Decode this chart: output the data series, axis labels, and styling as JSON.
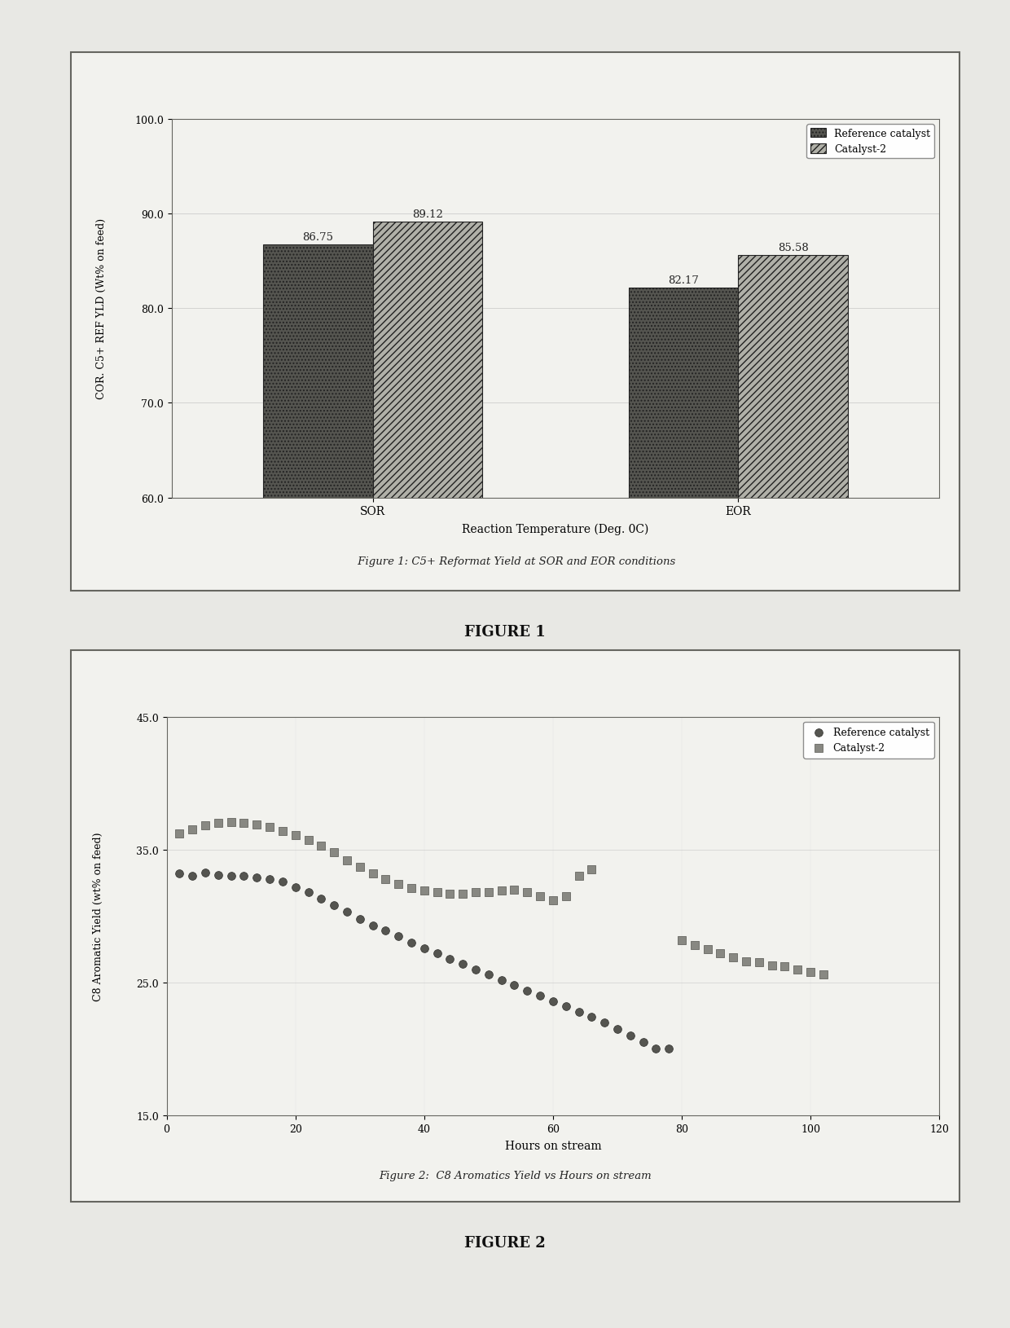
{
  "fig1": {
    "title": " Figure 1: C5+ Reformat Yield at SOR and EOR conditions",
    "xlabel": "Reaction Temperature (Deg. 0C)",
    "ylabel": "COR. C5+ REF YLD (Wt% on feed)",
    "ylim": [
      60.0,
      100.0
    ],
    "yticks": [
      60.0,
      70.0,
      80.0,
      90.0,
      100.0
    ],
    "categories": [
      "SOR",
      "EOR"
    ],
    "ref_values": [
      86.75,
      82.17
    ],
    "cat2_values": [
      89.12,
      85.58
    ],
    "ref_label": "Reference catalyst",
    "cat2_label": "Catalyst-2",
    "ref_color": "#555550",
    "cat2_hatch_color": "#b0b0a8",
    "bar_width": 0.3
  },
  "fig2": {
    "title": "Figure 2:  C8 Aromatics Yield vs Hours on stream",
    "xlabel": "Hours on stream",
    "ylabel": "C8 Aromatic Yield (wt% on feed)",
    "ylim": [
      15.0,
      45.0
    ],
    "yticks": [
      15.0,
      25.0,
      35.0,
      45.0
    ],
    "xlim": [
      0,
      120
    ],
    "xticks": [
      0,
      20,
      40,
      60,
      80,
      100,
      120
    ],
    "ref_label": "Reference catalyst",
    "cat2_label": "Catalyst-2",
    "ref_x": [
      2,
      4,
      6,
      8,
      10,
      12,
      14,
      16,
      18,
      20,
      22,
      24,
      26,
      28,
      30,
      32,
      34,
      36,
      38,
      40,
      42,
      44,
      46,
      48,
      50,
      52,
      54,
      56,
      58,
      60,
      62,
      64,
      66,
      68,
      70,
      72,
      74,
      76,
      78
    ],
    "ref_y": [
      33.2,
      33.0,
      33.3,
      33.1,
      33.0,
      33.0,
      32.9,
      32.8,
      32.6,
      32.2,
      31.8,
      31.3,
      30.8,
      30.3,
      29.8,
      29.3,
      28.9,
      28.5,
      28.0,
      27.6,
      27.2,
      26.8,
      26.4,
      26.0,
      25.6,
      25.2,
      24.8,
      24.4,
      24.0,
      23.6,
      23.2,
      22.8,
      22.4,
      22.0,
      21.5,
      21.0,
      20.5,
      20.0,
      20.0
    ],
    "cat2_x": [
      2,
      4,
      6,
      8,
      10,
      12,
      14,
      16,
      18,
      20,
      22,
      24,
      26,
      28,
      30,
      32,
      34,
      36,
      38,
      40,
      42,
      44,
      46,
      48,
      50,
      52,
      54,
      56,
      58,
      60,
      62,
      64,
      66,
      80,
      82,
      84,
      86,
      88,
      90,
      92,
      94,
      96,
      98,
      100,
      102
    ],
    "cat2_y": [
      36.2,
      36.5,
      36.8,
      37.0,
      37.1,
      37.0,
      36.9,
      36.7,
      36.4,
      36.1,
      35.7,
      35.3,
      34.8,
      34.2,
      33.7,
      33.2,
      32.8,
      32.4,
      32.1,
      31.9,
      31.8,
      31.7,
      31.7,
      31.8,
      31.8,
      31.9,
      32.0,
      31.8,
      31.5,
      31.2,
      31.5,
      33.0,
      33.5,
      28.2,
      27.8,
      27.5,
      27.2,
      26.9,
      26.6,
      26.5,
      26.3,
      26.2,
      26.0,
      25.8,
      25.6
    ]
  },
  "figure1_label": "FIGURE 1",
  "figure2_label": "FIGURE 2"
}
